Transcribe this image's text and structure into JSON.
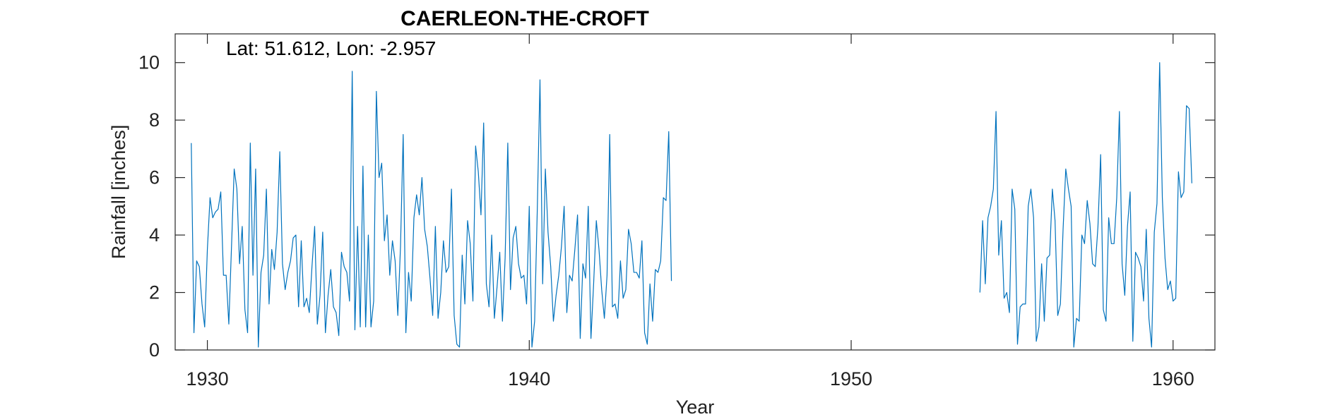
{
  "chart_data": {
    "type": "line",
    "title": "CAERLEON-THE-CROFT",
    "annotation": "Lat: 51.612, Lon: -2.957",
    "xlabel": "Year",
    "ylabel": "Rainfall [inches]",
    "xlim": [
      1929,
      1961.3
    ],
    "ylim": [
      0,
      11
    ],
    "xticks": [
      1930,
      1940,
      1950,
      1960
    ],
    "yticks": [
      0,
      2,
      4,
      6,
      8,
      10
    ],
    "grid": false,
    "series_color": "#0072BD",
    "series": [
      {
        "segments": [
          {
            "start_year": 1929.5,
            "step_years": 0.08333,
            "values": [
              7.2,
              0.6,
              3.1,
              2.9,
              1.6,
              0.8,
              3.5,
              5.3,
              4.6,
              4.8,
              4.9,
              5.5,
              2.6,
              2.6,
              0.9,
              3.6,
              6.3,
              5.6,
              3.0,
              4.3,
              1.4,
              0.6,
              7.2,
              2.6,
              6.3,
              0.1,
              2.7,
              3.3,
              5.6,
              1.6,
              3.5,
              2.8,
              4.1,
              6.9,
              3.0,
              2.1,
              2.7,
              3.1,
              3.9,
              4.0,
              1.5,
              3.8,
              1.5,
              1.8,
              1.3,
              2.9,
              4.3,
              0.9,
              1.9,
              4.1,
              0.6,
              1.9,
              2.8,
              1.5,
              1.3,
              0.5,
              3.4,
              2.9,
              2.7,
              1.7,
              9.7,
              0.7,
              4.3,
              0.8,
              6.4,
              0.8,
              4.0,
              0.8,
              1.7,
              9.0,
              6.0,
              6.5,
              3.8,
              4.7,
              2.6,
              3.8,
              3.1,
              1.2,
              3.6,
              7.5,
              0.6,
              2.7,
              1.7,
              4.6,
              5.4,
              4.7,
              6.0,
              4.2,
              3.6,
              2.5,
              1.2,
              4.3,
              1.1,
              2.0,
              3.8,
              2.7,
              2.9,
              5.6,
              1.2,
              0.2,
              0.1,
              3.3,
              1.6,
              4.5,
              3.7,
              1.7,
              7.1,
              6.2,
              4.7,
              7.9,
              2.3,
              1.5,
              4.0,
              1.1,
              2.2,
              3.4,
              1.0,
              3.2,
              7.2,
              2.1,
              3.9,
              4.3,
              3.0,
              2.5,
              2.6,
              1.6,
              5.0,
              0.1,
              1.0,
              4.9,
              9.4,
              2.3,
              6.3,
              4.1,
              2.9,
              1.0,
              1.9,
              2.6,
              3.6,
              5.0,
              1.3,
              2.6,
              2.4,
              3.5,
              4.7,
              0.4,
              3.0,
              2.5,
              5.0,
              0.4,
              2.3,
              4.5,
              3.5,
              2.1,
              1.1,
              2.6,
              7.5,
              1.5,
              1.6,
              1.1,
              3.1,
              1.8,
              2.1,
              4.2,
              3.7,
              2.7,
              2.7,
              2.5,
              3.8,
              0.6,
              0.2,
              2.3,
              1.0,
              2.8,
              2.7,
              3.1,
              5.3,
              5.2,
              7.6,
              2.4
            ]
          },
          {
            "start_year": 1954.0,
            "step_years": 0.08333,
            "values": [
              2.0,
              4.5,
              2.3,
              4.6,
              5.0,
              5.6,
              8.3,
              3.3,
              4.5,
              1.8,
              2.0,
              1.3,
              5.6,
              4.9,
              0.2,
              1.5,
              1.6,
              1.6,
              5.0,
              5.6,
              4.6,
              0.3,
              0.8,
              3.0,
              1.0,
              3.2,
              3.3,
              5.6,
              4.5,
              1.2,
              1.6,
              4.2,
              6.3,
              5.6,
              5.0,
              0.1,
              1.1,
              1.0,
              4.0,
              3.7,
              5.2,
              4.4,
              3.0,
              2.9,
              4.3,
              6.8,
              1.4,
              1.0,
              4.6,
              3.7,
              3.7,
              5.3,
              8.3,
              3.0,
              1.9,
              4.3,
              5.5,
              0.3,
              3.4,
              3.2,
              2.9,
              1.7,
              4.2,
              1.1,
              0.1,
              4.1,
              5.1,
              10.0,
              5.3,
              3.2,
              2.1,
              2.4,
              1.7,
              1.8,
              6.2,
              5.3,
              5.5,
              8.5,
              8.4,
              5.8
            ]
          }
        ]
      }
    ]
  }
}
